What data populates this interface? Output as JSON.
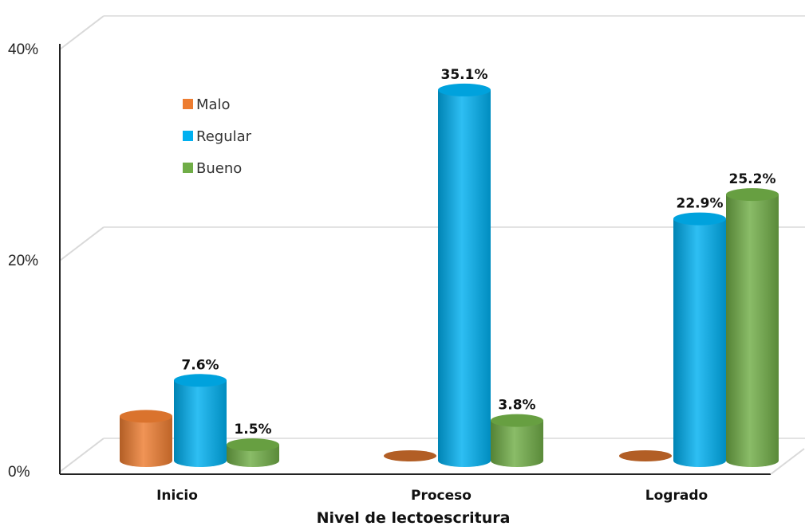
{
  "chart_data": {
    "type": "bar",
    "categories": [
      "Inicio",
      "Proceso",
      "Logrado"
    ],
    "series": [
      {
        "name": "Malo",
        "values": [
          4.2,
          0.0,
          0.0
        ],
        "color": "#ED7D31"
      },
      {
        "name": "Regular",
        "values": [
          7.6,
          35.1,
          22.9
        ],
        "color": "#00B0F0"
      },
      {
        "name": "Bueno",
        "values": [
          1.5,
          3.8,
          25.2
        ],
        "color": "#70AD47"
      }
    ],
    "data_labels": [
      [
        null,
        null,
        null
      ],
      [
        "7.6%",
        "35.1%",
        "22.9%"
      ],
      [
        "1.5%",
        "3.8%",
        "25.2%"
      ]
    ],
    "title": "",
    "xlabel": "Nivel de lectoescritura",
    "ylabel": "",
    "ylim": [
      0,
      40
    ],
    "yticks": [
      "0%",
      "20%",
      "40%"
    ],
    "grid": true,
    "legend_position": "top-left",
    "style": "3d-cylinder"
  }
}
